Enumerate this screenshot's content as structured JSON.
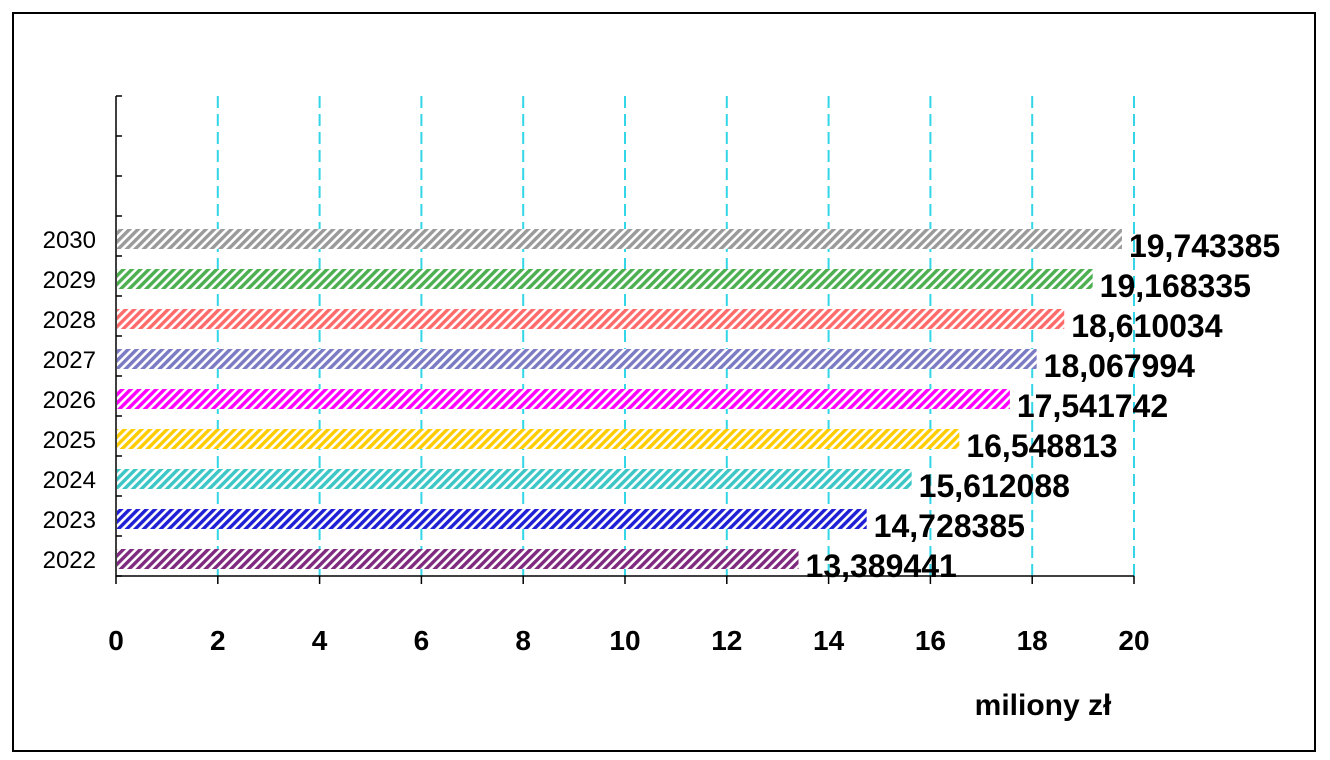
{
  "chart_data": {
    "type": "bar",
    "orientation": "horizontal",
    "title": "",
    "xlabel": "miliony zł",
    "ylabel": "",
    "xlim": [
      0,
      20
    ],
    "x_ticks": [
      "0",
      "2",
      "4",
      "6",
      "8",
      "10",
      "12",
      "14",
      "16",
      "18",
      "20"
    ],
    "grid": "vertical dashed",
    "categories": [
      "2022",
      "2023",
      "2024",
      "2025",
      "2026",
      "2027",
      "2028",
      "2029",
      "2030"
    ],
    "values": [
      13.389441,
      14.728385,
      15.612088,
      16.548813,
      17.541742,
      18.067994,
      18.610034,
      19.168335,
      19.743385
    ],
    "value_labels": [
      "13,389441",
      "14,728385",
      "15,612088",
      "16,548813",
      "17,541742",
      "18,067994",
      "18,610034",
      "19,168335",
      "19,743385"
    ],
    "bar_colors": [
      "#7f2a7f",
      "#1f1fd6",
      "#3cc6c6",
      "#ffcc00",
      "#ff00ff",
      "#7b7bc4",
      "#ff6b6b",
      "#4caf50",
      "#9a9a9a"
    ],
    "grid_color": "#33d6e6",
    "fill_style": "diagonal hatch"
  }
}
